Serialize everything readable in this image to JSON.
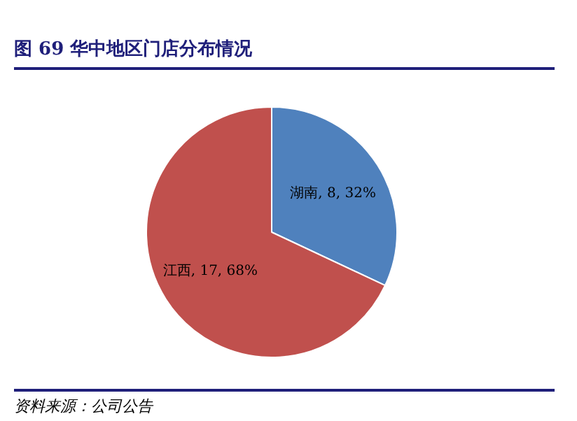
{
  "chart_data": {
    "type": "pie",
    "title": "图 69  华中地区门店分布情况",
    "categories": [
      "湖南",
      "江西"
    ],
    "values": [
      8,
      17
    ],
    "colors": [
      "#4f81bd",
      "#c0504d"
    ],
    "value_labels": [
      "8, 32%",
      "17, 68%"
    ],
    "legend": false,
    "annotations": [
      "资料来源：公司公告"
    ]
  }
}
